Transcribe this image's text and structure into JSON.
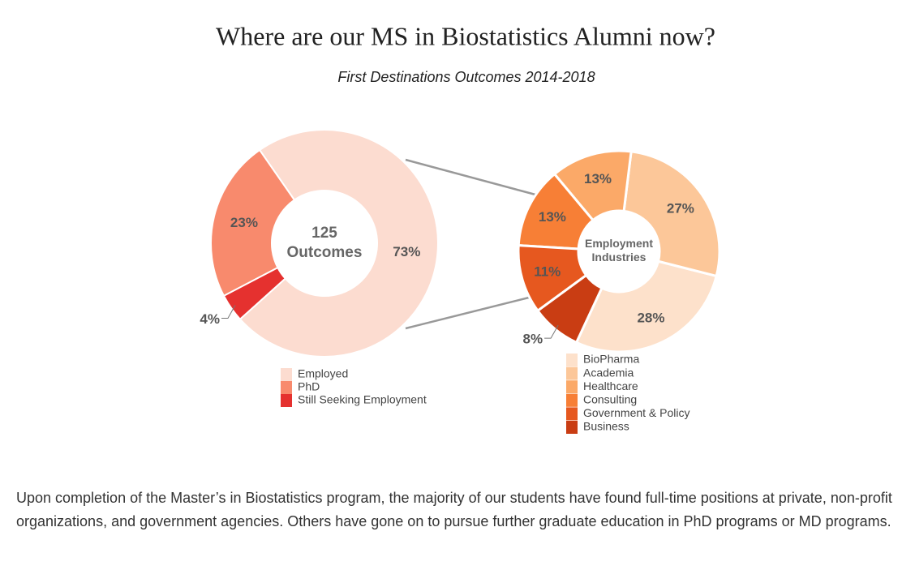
{
  "header": {
    "title": "Where are our MS in Biostatistics Alumni now?",
    "subtitle": "First Destinations Outcomes 2014-2018"
  },
  "chart_data": [
    {
      "type": "donut",
      "center_label": [
        "125",
        "Outcomes"
      ],
      "categories": [
        "Employed",
        "PhD",
        "Still Seeking Employment"
      ],
      "values": [
        73,
        23,
        4
      ],
      "value_labels": [
        "73%",
        "23%",
        "4%"
      ],
      "colors": [
        "#fcdcd0",
        "#f88a6d",
        "#e5312f"
      ]
    },
    {
      "type": "donut",
      "center_label": [
        "Employment",
        "Industries"
      ],
      "categories": [
        "BioPharma",
        "Academia",
        "Healthcare",
        "Consulting",
        "Government & Policy",
        "Business"
      ],
      "values": [
        28,
        27,
        13,
        13,
        11,
        8
      ],
      "value_labels": [
        "28%",
        "27%",
        "13%",
        "13%",
        "11%",
        "8%"
      ],
      "colors": [
        "#fde1cb",
        "#fcc799",
        "#fba968",
        "#f77f36",
        "#e6581f",
        "#c93d13"
      ]
    }
  ],
  "body": {
    "text": "Upon completion of the Master’s in Biostatistics program, the majority of our students have found full-time positions at private, non-profit organizations, and government agencies. Others have gone on to pursue further graduate education in PhD programs or MD programs."
  }
}
